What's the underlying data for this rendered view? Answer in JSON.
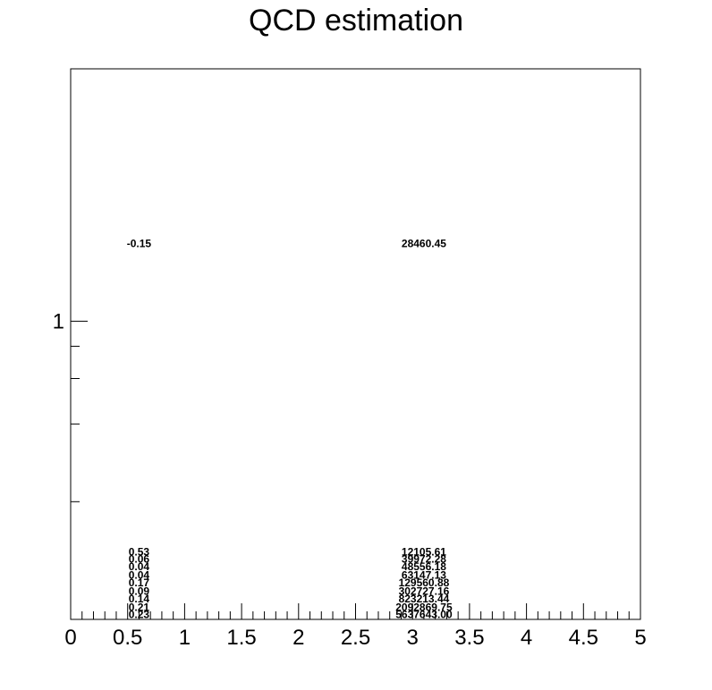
{
  "chart_data": {
    "type": "heatmap",
    "title": "QCD estimation",
    "xlabel": "",
    "ylabel": "",
    "xlim": [
      0,
      5
    ],
    "y_scale": "log",
    "x_ticks": [
      "0",
      "0.5",
      "1",
      "1.5",
      "2",
      "2.5",
      "3",
      "3.5",
      "4",
      "4.5",
      "5"
    ],
    "y_tick_labels": [
      {
        "value": 1,
        "label": "1"
      }
    ],
    "grid": false,
    "legend": "none",
    "columns": [
      0.6,
      3.1
    ],
    "cells": [
      {
        "y_bin": 2.0,
        "values": [
          "-0.15",
          "28460.45"
        ]
      },
      {
        "y_bin": 0.128,
        "values": [
          "0.53",
          "12105.61"
        ]
      },
      {
        "y_bin": 0.12,
        "values": [
          "0.06",
          "39972.28"
        ]
      },
      {
        "y_bin": 0.112,
        "values": [
          "0.04",
          "48556.18"
        ]
      },
      {
        "y_bin": 0.104,
        "values": [
          "0.04",
          "63147.13"
        ]
      },
      {
        "y_bin": 0.097,
        "values": [
          "0.17",
          "129560.88"
        ]
      },
      {
        "y_bin": 0.09,
        "values": [
          "0.09",
          "302727.16"
        ]
      },
      {
        "y_bin": 0.084,
        "values": [
          "0.14",
          "823213.44"
        ]
      },
      {
        "y_bin": 0.078,
        "values": [
          "0.21",
          "2092869.75"
        ]
      },
      {
        "y_bin": 0.073,
        "values": [
          "0.23",
          "5637643.00"
        ]
      }
    ]
  }
}
